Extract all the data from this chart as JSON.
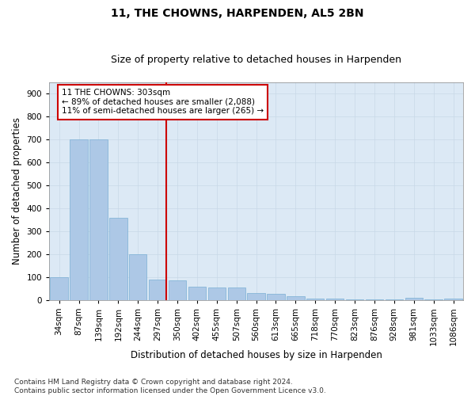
{
  "title": "11, THE CHOWNS, HARPENDEN, AL5 2BN",
  "subtitle": "Size of property relative to detached houses in Harpenden",
  "xlabel": "Distribution of detached houses by size in Harpenden",
  "ylabel": "Number of detached properties",
  "categories": [
    "34sqm",
    "87sqm",
    "139sqm",
    "192sqm",
    "244sqm",
    "297sqm",
    "350sqm",
    "402sqm",
    "455sqm",
    "507sqm",
    "560sqm",
    "613sqm",
    "665sqm",
    "718sqm",
    "770sqm",
    "823sqm",
    "876sqm",
    "928sqm",
    "981sqm",
    "1033sqm",
    "1086sqm"
  ],
  "values": [
    100,
    700,
    700,
    360,
    200,
    90,
    85,
    58,
    55,
    55,
    30,
    28,
    18,
    5,
    5,
    2,
    2,
    2,
    10,
    2,
    5
  ],
  "bar_color": "#adc8e6",
  "bar_edge_color": "#7aafd4",
  "vline_x": 5.45,
  "vline_color": "#cc0000",
  "annotation_text": "11 THE CHOWNS: 303sqm\n← 89% of detached houses are smaller (2,088)\n11% of semi-detached houses are larger (265) →",
  "annotation_box_color": "#ffffff",
  "annotation_box_edge": "#cc0000",
  "ylim": [
    0,
    950
  ],
  "yticks": [
    0,
    100,
    200,
    300,
    400,
    500,
    600,
    700,
    800,
    900
  ],
  "grid_color": "#c8d8e8",
  "bg_color": "#dce9f5",
  "footnote": "Contains HM Land Registry data © Crown copyright and database right 2024.\nContains public sector information licensed under the Open Government Licence v3.0.",
  "title_fontsize": 10,
  "subtitle_fontsize": 9,
  "xlabel_fontsize": 8.5,
  "ylabel_fontsize": 8.5,
  "tick_fontsize": 7.5,
  "annotation_fontsize": 7.5,
  "footnote_fontsize": 6.5
}
